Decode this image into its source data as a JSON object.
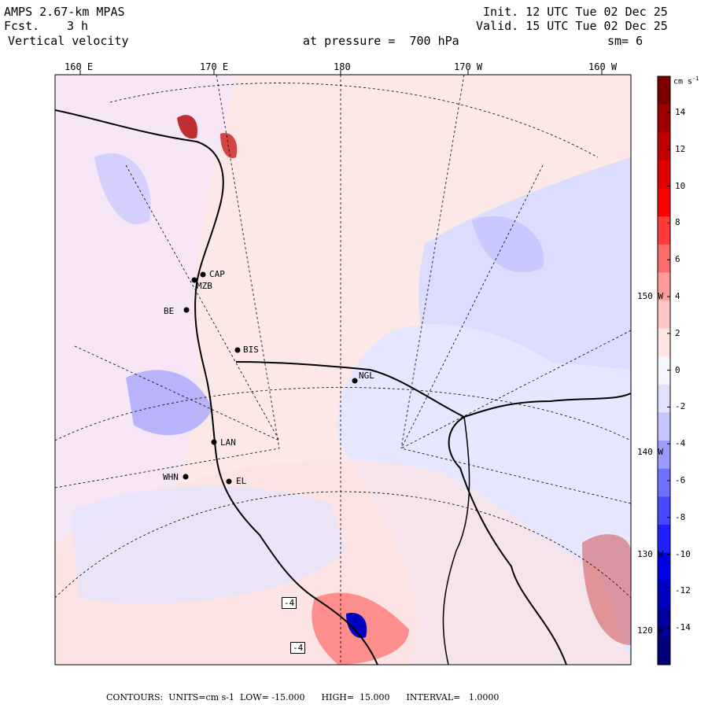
{
  "header": {
    "model": "AMPS 2.67-km MPAS",
    "fcst_label": "Fcst.",
    "fcst_value": "3 h",
    "field": "Vertical velocity",
    "init": "Init. 12 UTC Tue 02 Dec 25",
    "valid": "Valid. 15 UTC Tue 02 Dec 25",
    "level": "at pressure =  700 hPa",
    "smoothing": "sm= 6"
  },
  "longitude_labels": [
    "160 E",
    "170 E",
    "180",
    "170 W",
    "160 W"
  ],
  "latitude_labels": [
    "150 W",
    "140 W",
    "130 W",
    "120 W"
  ],
  "stations": [
    "CAP",
    "MZB",
    "BE",
    "BIS",
    "NGL",
    "LAN",
    "WHN",
    "EL"
  ],
  "box_labels": [
    "-4",
    "-4"
  ],
  "colorbar": {
    "units": "cm s",
    "units_exp": "-1",
    "tick_labels": [
      "14",
      "12",
      "10",
      "8",
      "6",
      "4",
      "2",
      "0",
      "-2",
      "-4",
      "-6",
      "-8",
      "-10",
      "-12",
      "-14"
    ],
    "colors": [
      "#7a0000",
      "#a00000",
      "#c00000",
      "#e00000",
      "#ff0000",
      "#ff3a3a",
      "#ff6a6a",
      "#ff9a9a",
      "#ffc4c4",
      "#ffe4e4",
      "#f6f6ff",
      "#e2e2ff",
      "#c4c4ff",
      "#9c9cff",
      "#7070ff",
      "#4848ff",
      "#2020ff",
      "#0000e6",
      "#0000c0",
      "#00009a",
      "#000078"
    ]
  },
  "footer": "CONTOURS:  UNITS=cm s-1  LOW= -15.000      HIGH=  15.000      INTERVAL=   1.0000"
}
